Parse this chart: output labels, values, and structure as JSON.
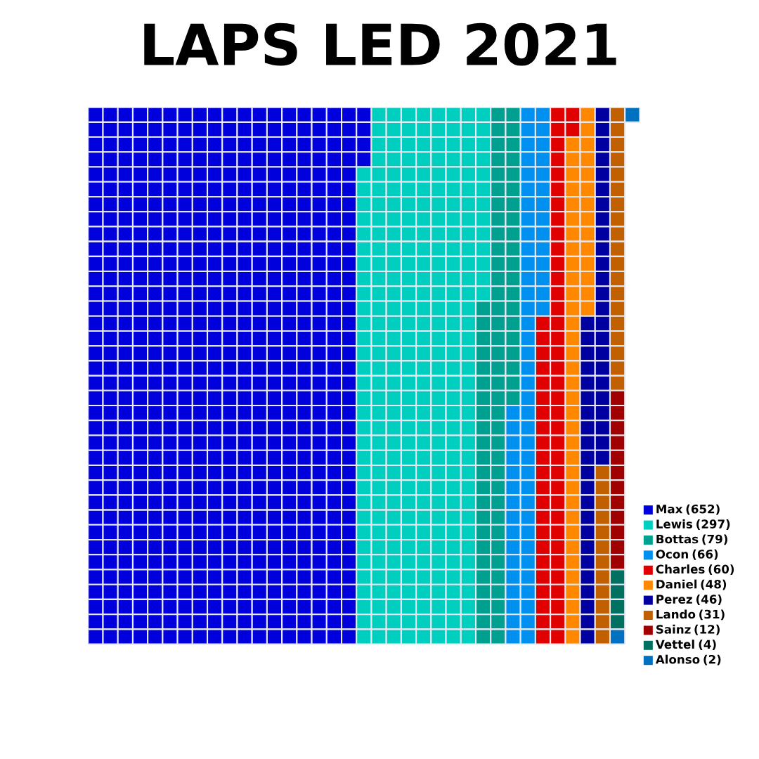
{
  "chart_data": {
    "type": "other",
    "title": "LAPS LED 2021",
    "categories": [
      "Max",
      "Lewis",
      "Bottas",
      "Ocon",
      "Charles",
      "Daniel",
      "Perez",
      "Lando",
      "Sainz",
      "Vettel",
      "Alonso"
    ],
    "values": [
      652,
      297,
      79,
      66,
      60,
      48,
      46,
      31,
      12,
      4,
      2
    ],
    "value_labels": [
      "(652)",
      "(297)",
      "(79)",
      "(66)",
      "(60)",
      "(48)",
      "(46)",
      "(31)",
      "(12)",
      "(4)",
      "(2)"
    ],
    "colors": [
      "#0000dd",
      "#00cfc0",
      "#00a090",
      "#0090f0",
      "#e00000",
      "#ff8800",
      "#0000a0",
      "#c06000",
      "#a00000",
      "#007060",
      "#0070c0"
    ]
  }
}
